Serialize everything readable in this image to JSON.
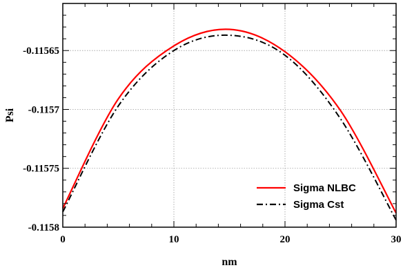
{
  "chart_data": {
    "type": "line",
    "title": "",
    "xlabel": "nm",
    "ylabel": "Psi",
    "xlim": [
      0,
      30
    ],
    "ylim": [
      -0.1158,
      -0.11561
    ],
    "x_ticks": [
      0,
      10,
      20,
      30
    ],
    "x_tick_labels": [
      "0",
      "10",
      "20",
      "30"
    ],
    "y_ticks": [
      -0.11565,
      -0.1157,
      -0.11575,
      -0.1158
    ],
    "y_tick_labels": [
      "-0.11565",
      "-0.1157",
      "-0.11575",
      "-0.1158"
    ],
    "grid": true,
    "legend_position": "bottom-right",
    "series": [
      {
        "name": "Sigma NLBC",
        "color": "#ff0000",
        "line_style": "solid",
        "x": [
          0,
          5,
          10,
          15,
          20,
          25,
          30
        ],
        "y": [
          -0.115784,
          -0.115691,
          -0.115646,
          -0.115632,
          -0.115651,
          -0.115701,
          -0.115788
        ]
      },
      {
        "name": "Sigma Cst",
        "color": "#000000",
        "line_style": "dash-dot",
        "x": [
          0,
          5,
          10,
          15,
          20,
          25,
          30
        ],
        "y": [
          -0.115787,
          -0.115697,
          -0.11565,
          -0.115637,
          -0.115654,
          -0.115708,
          -0.115794
        ]
      }
    ]
  }
}
